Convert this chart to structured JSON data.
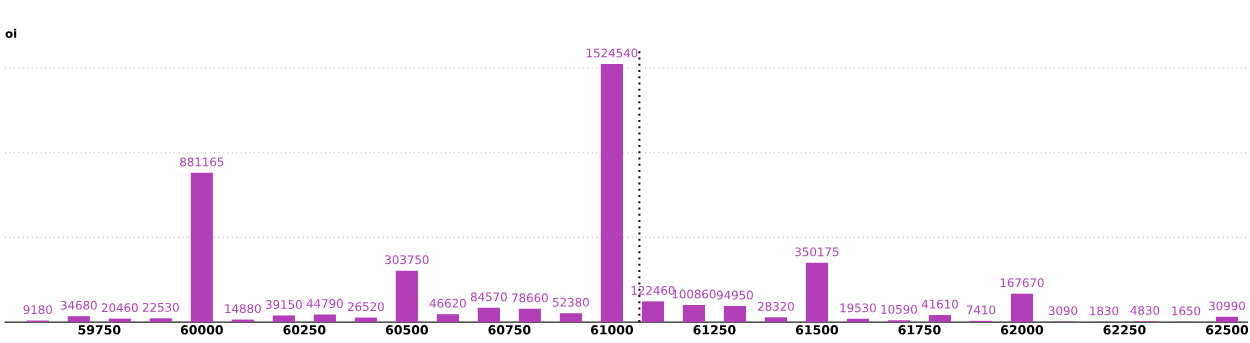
{
  "chart_data": {
    "type": "bar",
    "ylabel": "oi",
    "x": [
      59600,
      59700,
      59800,
      59900,
      60000,
      60100,
      60200,
      60300,
      60400,
      60500,
      60600,
      60700,
      60800,
      60900,
      61000,
      61100,
      61200,
      61300,
      61400,
      61500,
      61600,
      61700,
      61800,
      61900,
      62000,
      62100,
      62200,
      62300,
      62400,
      62500
    ],
    "series": [
      {
        "color": "#b23fb8",
        "values": [
          9180,
          34680,
          20460,
          22530,
          881165,
          14880,
          39150,
          44790,
          26520,
          303750,
          46620,
          84570,
          78660,
          52380,
          1524540,
          122460,
          100860,
          94950,
          28320,
          350175,
          19530,
          10590,
          41610,
          7410,
          167670,
          3090,
          1830,
          4830,
          1650,
          30990
        ]
      }
    ],
    "data_labels": true,
    "xlim": [
      59520,
      62550
    ],
    "xticks": [
      59750,
      60000,
      60250,
      60500,
      60750,
      61000,
      61250,
      61500,
      61750,
      62000,
      62250,
      62500
    ],
    "ylim": [
      0,
      1600000
    ],
    "yticks": [
      {
        "value": 500000,
        "label": null
      },
      {
        "value": 1000000,
        "label": null
      },
      {
        "value": 1500000,
        "label": null
      }
    ],
    "grid": "y",
    "ref_lines": [
      {
        "axis": "x",
        "value": 61067,
        "color": "#111111",
        "line_style": "dotted"
      }
    ]
  }
}
